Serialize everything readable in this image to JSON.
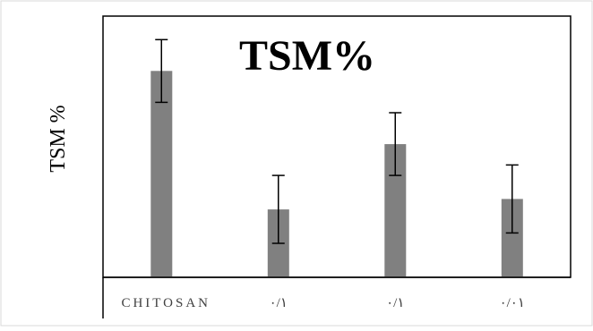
{
  "chart_data": {
    "type": "bar",
    "title": "TSM%",
    "ylabel": "TSM %",
    "xlabel": "",
    "categories": [
      "CHITOSAN",
      "۰/۱",
      "۰/۱",
      "۰/۰۱"
    ],
    "values": [
      79,
      26,
      51,
      30
    ],
    "error": [
      12,
      13,
      12,
      13
    ],
    "ylim": [
      0,
      100
    ],
    "grid": false,
    "bar_color": "#808080",
    "error_color": "#000000",
    "frame_color": "#000000",
    "outer_border_color": "#d9d9d9"
  }
}
